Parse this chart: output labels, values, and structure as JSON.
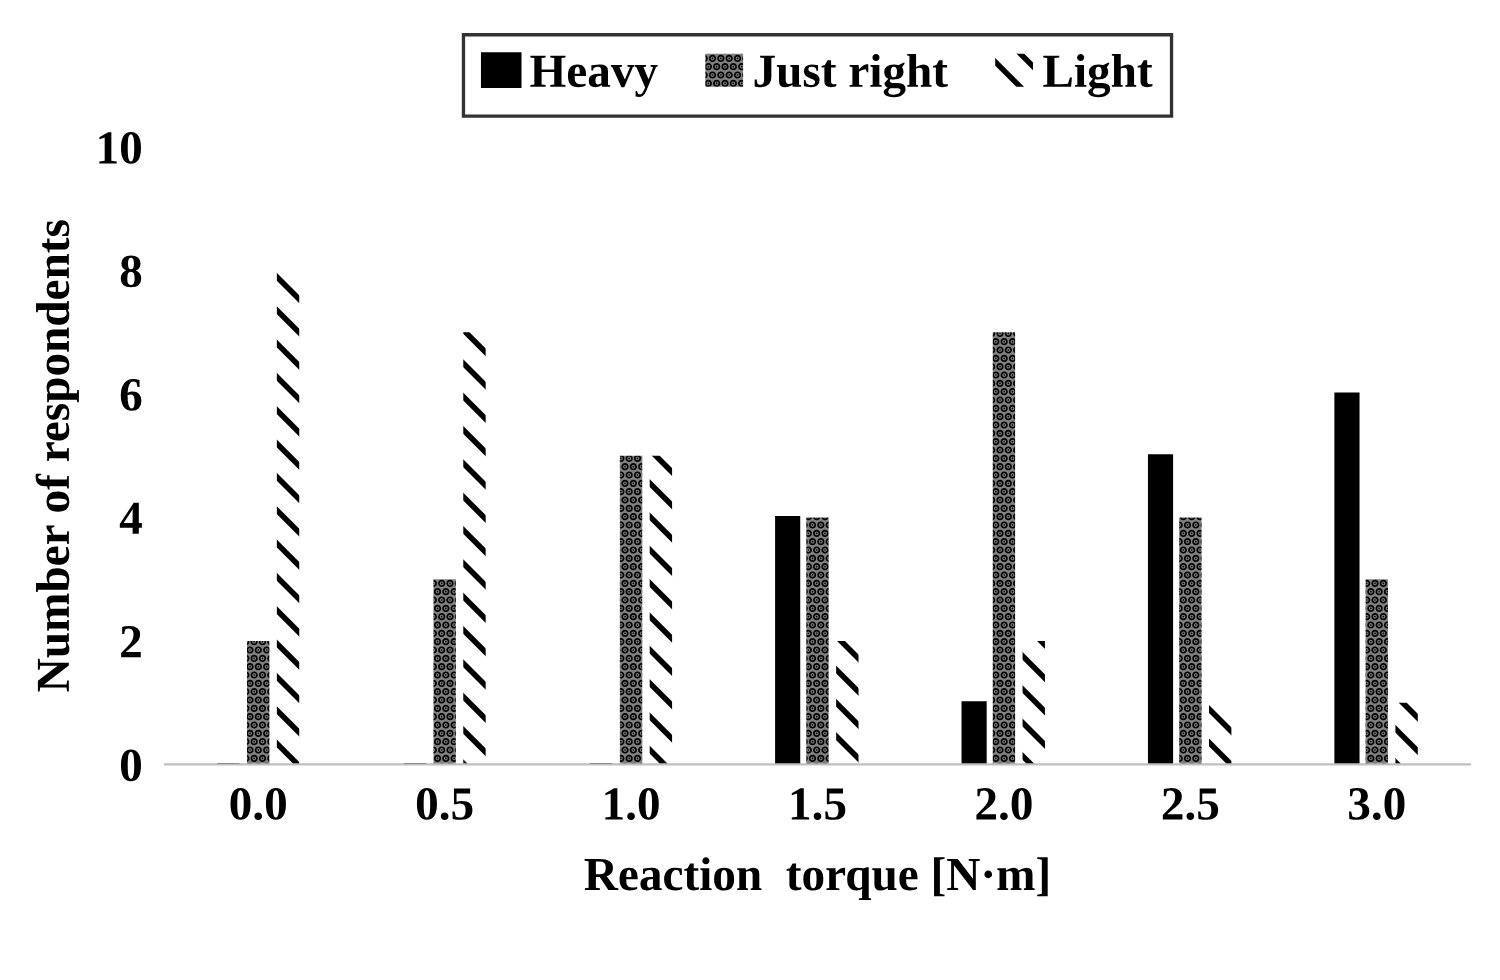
{
  "chart_data": {
    "type": "bar",
    "xlabel": "Reaction  torque [N·m]",
    "ylabel": "Number of respondents",
    "categories": [
      "0.0",
      "0.5",
      "1.0",
      "1.5",
      "2.0",
      "2.5",
      "3.0"
    ],
    "series": [
      {
        "name": "Heavy",
        "color": "#000000",
        "values": [
          0,
          0,
          0,
          4,
          1,
          5,
          6
        ]
      },
      {
        "name": "Just right",
        "color": "#808080",
        "values": [
          2,
          3,
          5,
          4,
          7,
          4,
          3
        ]
      },
      {
        "name": "Light",
        "color": "#000000",
        "values": [
          8,
          7,
          5,
          2,
          2,
          1,
          1
        ]
      }
    ],
    "ylim": [
      0,
      10
    ],
    "yticks": [
      0,
      2,
      4,
      6,
      8,
      10
    ],
    "grid": false,
    "legend": "top"
  }
}
